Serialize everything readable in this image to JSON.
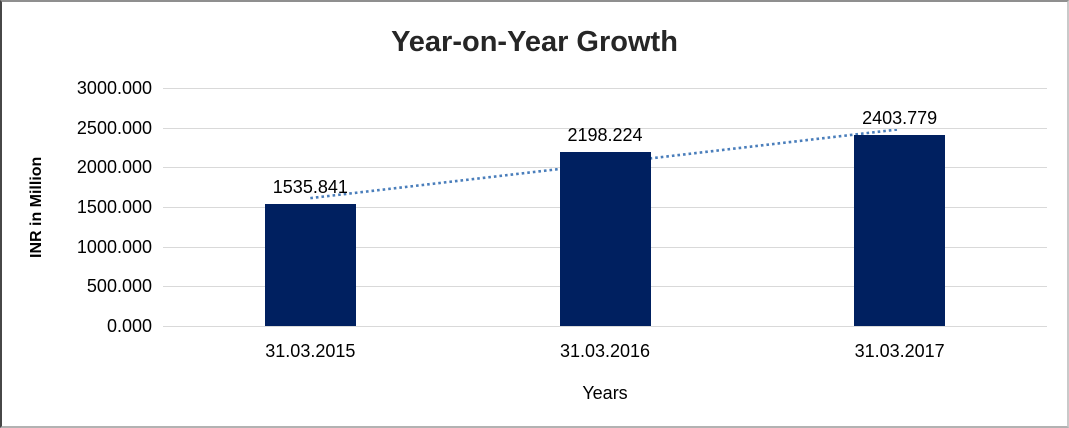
{
  "chart": {
    "title": "Year-on-Year Growth",
    "y_axis_title": "INR in Million",
    "x_axis_title": "Years",
    "y_ticks": [
      "3000.000",
      "2500.000",
      "2000.000",
      "1500.000",
      "1000.000",
      "500.000",
      "0.000"
    ],
    "colors": {
      "bar": "#002060",
      "trendline": "#4a7ebb",
      "gridline": "#d9d9d9",
      "title_text": "#262626",
      "label_text": "#000000"
    }
  },
  "chart_data": {
    "type": "bar",
    "title": "Year-on-Year Growth",
    "xlabel": "Years",
    "ylabel": "INR in Million",
    "categories": [
      "31.03.2015",
      "31.03.2016",
      "31.03.2017"
    ],
    "values": [
      1535.841,
      2198.224,
      2403.779
    ],
    "data_labels": [
      "1535.841",
      "2198.224",
      "2403.779"
    ],
    "ylim": [
      0,
      3000
    ],
    "y_tick_step": 500,
    "grid": true,
    "legend": "none",
    "trendline": {
      "type": "linear",
      "style": "dotted",
      "color": "#4a7ebb"
    },
    "bar_color": "#002060"
  }
}
